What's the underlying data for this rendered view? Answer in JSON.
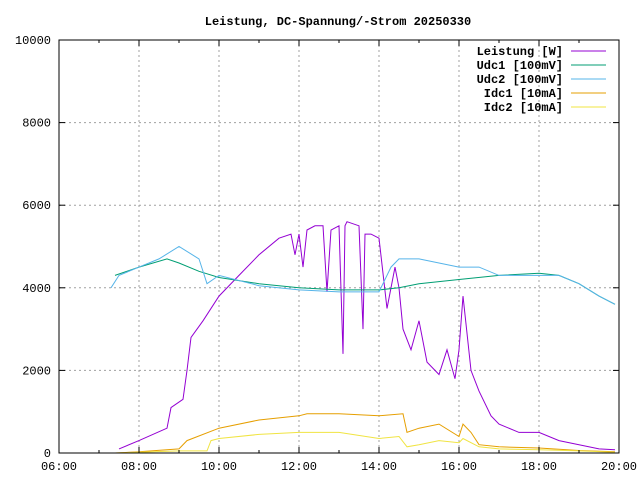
{
  "chart_data": {
    "type": "line",
    "title": "Leistung, DC-Spannung/-Strom 20250330",
    "xlabel": "",
    "ylabel": "",
    "xlim": [
      6,
      20
    ],
    "ylim": [
      0,
      10000
    ],
    "grid": true,
    "legend_position": "top-right",
    "x_ticks": [
      {
        "v": 6,
        "label": "06:00"
      },
      {
        "v": 8,
        "label": "08:00"
      },
      {
        "v": 10,
        "label": "10:00"
      },
      {
        "v": 12,
        "label": "12:00"
      },
      {
        "v": 14,
        "label": "14:00"
      },
      {
        "v": 16,
        "label": "16:00"
      },
      {
        "v": 18,
        "label": "18:00"
      },
      {
        "v": 20,
        "label": "20:00"
      }
    ],
    "y_ticks": [
      {
        "v": 0,
        "label": "0"
      },
      {
        "v": 2000,
        "label": "2000"
      },
      {
        "v": 4000,
        "label": "4000"
      },
      {
        "v": 6000,
        "label": "6000"
      },
      {
        "v": 8000,
        "label": "8000"
      },
      {
        "v": 10000,
        "label": "10000"
      }
    ],
    "series": [
      {
        "name": "Leistung [W]",
        "color": "#9400d3",
        "x": [
          7.5,
          8,
          8.7,
          8.8,
          9.1,
          9.2,
          9.3,
          9.6,
          10,
          10.5,
          11,
          11.5,
          11.8,
          11.9,
          12,
          12.1,
          12.2,
          12.4,
          12.6,
          12.7,
          12.8,
          13,
          13.1,
          13.15,
          13.2,
          13.5,
          13.6,
          13.65,
          13.8,
          14,
          14.2,
          14.4,
          14.5,
          14.6,
          14.8,
          15,
          15.2,
          15.5,
          15.7,
          15.9,
          16,
          16.1,
          16.3,
          16.5,
          16.8,
          17,
          17.5,
          18,
          18.5,
          19,
          19.5,
          19.9
        ],
        "y": [
          100,
          300,
          600,
          1100,
          1300,
          2000,
          2800,
          3200,
          3800,
          4300,
          4800,
          5200,
          5300,
          4800,
          5300,
          4500,
          5400,
          5500,
          5500,
          3900,
          5400,
          5500,
          2400,
          5500,
          5600,
          5500,
          3000,
          5300,
          5300,
          5200,
          3500,
          4500,
          4000,
          3000,
          2500,
          3200,
          2200,
          1900,
          2500,
          1800,
          2500,
          3800,
          2000,
          1500,
          900,
          700,
          500,
          500,
          300,
          200,
          100,
          80
        ]
      },
      {
        "name": "Udc1 [100mV]",
        "color": "#009e73",
        "x": [
          7.4,
          8,
          8.7,
          9,
          9.5,
          10,
          11,
          12,
          13,
          14,
          14.5,
          15,
          16,
          17,
          18,
          18.5,
          19,
          19.5,
          19.9
        ],
        "y": [
          4300,
          4500,
          4700,
          4600,
          4400,
          4250,
          4100,
          4000,
          3950,
          3950,
          4000,
          4100,
          4200,
          4300,
          4350,
          4300,
          4100,
          3800,
          3600
        ]
      },
      {
        "name": "Udc2 [100mV]",
        "color": "#56b4e9",
        "x": [
          7.3,
          7.5,
          8,
          8.5,
          9,
          9.5,
          9.7,
          10,
          11,
          12,
          13,
          14,
          14.3,
          14.5,
          15,
          15.5,
          16,
          16.5,
          17,
          18,
          18.5,
          19,
          19.5,
          19.9
        ],
        "y": [
          4000,
          4300,
          4500,
          4700,
          5000,
          4700,
          4100,
          4300,
          4050,
          3950,
          3900,
          3900,
          4500,
          4700,
          4700,
          4600,
          4500,
          4500,
          4300,
          4300,
          4300,
          4100,
          3800,
          3600
        ]
      },
      {
        "name": "Idc1 [10mA]",
        "color": "#e69f00",
        "x": [
          7.4,
          8,
          9,
          9.2,
          10,
          11,
          12,
          12.2,
          13,
          14,
          14.6,
          14.7,
          15,
          15.5,
          16,
          16.1,
          16.3,
          16.5,
          17,
          18,
          19,
          19.9
        ],
        "y": [
          0,
          30,
          100,
          300,
          600,
          800,
          900,
          950,
          950,
          900,
          950,
          500,
          600,
          700,
          400,
          700,
          500,
          200,
          150,
          120,
          60,
          30
        ]
      },
      {
        "name": "Idc2 [10mA]",
        "color": "#f0e442",
        "x": [
          7.4,
          9,
          9.7,
          9.8,
          10,
          11,
          12,
          13,
          14,
          14.5,
          14.7,
          15,
          15.5,
          16,
          16.1,
          16.5,
          17,
          18,
          19,
          19.9
        ],
        "y": [
          0,
          50,
          50,
          300,
          350,
          450,
          500,
          500,
          350,
          400,
          150,
          200,
          300,
          250,
          350,
          150,
          100,
          80,
          50,
          20
        ]
      }
    ]
  }
}
